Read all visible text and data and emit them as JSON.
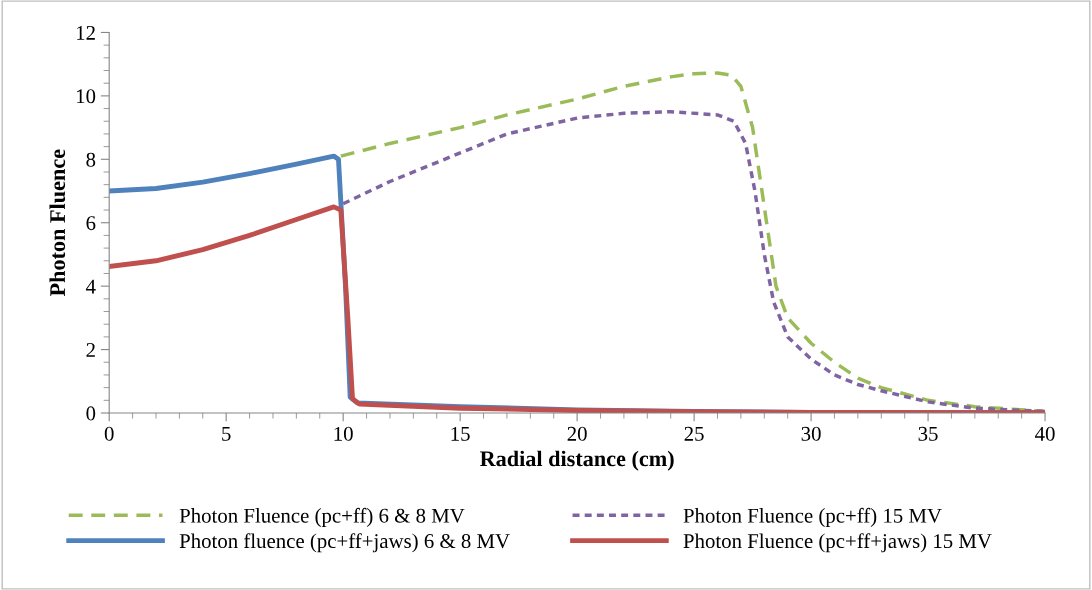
{
  "chart_data": {
    "type": "line",
    "xlabel": "Radial distance (cm)",
    "ylabel": "Photon Fluence",
    "xlim": [
      0,
      40
    ],
    "xticks": [
      0,
      5,
      10,
      15,
      20,
      25,
      30,
      35,
      40
    ],
    "ylim": [
      0,
      12
    ],
    "yticks": [
      0,
      2,
      4,
      6,
      8,
      10,
      12
    ],
    "grid": false,
    "legend": "bottom",
    "marker": "none",
    "series": [
      {
        "name": "Photon Fluence (pc+ff) 6 & 8 MV",
        "color": "#9bbb59",
        "line_style": "dashed",
        "x": [
          9.9,
          12,
          15,
          17,
          20,
          22,
          24,
          25,
          26,
          26.6,
          27,
          27.5,
          28,
          28.5,
          29,
          30,
          31,
          32,
          33,
          35,
          37,
          40
        ],
        "values": [
          8.1,
          8.5,
          9.0,
          9.4,
          9.9,
          10.3,
          10.6,
          10.7,
          10.72,
          10.65,
          10.3,
          9.0,
          6.5,
          4.0,
          3.0,
          2.2,
          1.6,
          1.1,
          0.8,
          0.4,
          0.2,
          0.05
        ]
      },
      {
        "name": "Photon Fluence (pc+ff) 15 MV",
        "color": "#8064a2",
        "line_style": "dotted",
        "x": [
          10,
          12,
          15,
          17,
          20,
          22,
          24,
          26,
          26.7,
          27.2,
          27.6,
          28,
          28.4,
          29,
          30,
          31,
          32,
          33,
          35,
          37,
          40
        ],
        "values": [
          6.6,
          7.3,
          8.2,
          8.8,
          9.3,
          9.45,
          9.5,
          9.4,
          9.2,
          8.5,
          7.0,
          5.0,
          3.5,
          2.4,
          1.7,
          1.2,
          0.9,
          0.7,
          0.35,
          0.15,
          0.05
        ]
      },
      {
        "name": "Photon fluence (pc+ff+jaws) 6 & 8 MV",
        "color": "#4f81bd",
        "line_style": "solid",
        "x": [
          0,
          2,
          4,
          6,
          8,
          9.6,
          9.8,
          10.1,
          10.3,
          10.6,
          15,
          20,
          25,
          30,
          40
        ],
        "values": [
          7.0,
          7.08,
          7.28,
          7.55,
          7.85,
          8.1,
          8.0,
          4.0,
          0.5,
          0.32,
          0.2,
          0.1,
          0.05,
          0.02,
          0.01
        ]
      },
      {
        "name": "Photon Fluence (pc+ff+jaws) 15 MV",
        "color": "#c0504d",
        "line_style": "solid",
        "x": [
          0,
          2,
          4,
          6,
          8,
          9.6,
          9.9,
          10.2,
          10.4,
          10.7,
          15,
          20,
          25,
          30,
          40
        ],
        "values": [
          4.62,
          4.8,
          5.15,
          5.6,
          6.1,
          6.5,
          6.4,
          3.0,
          0.45,
          0.28,
          0.15,
          0.08,
          0.04,
          0.02,
          0.01
        ]
      }
    ]
  }
}
